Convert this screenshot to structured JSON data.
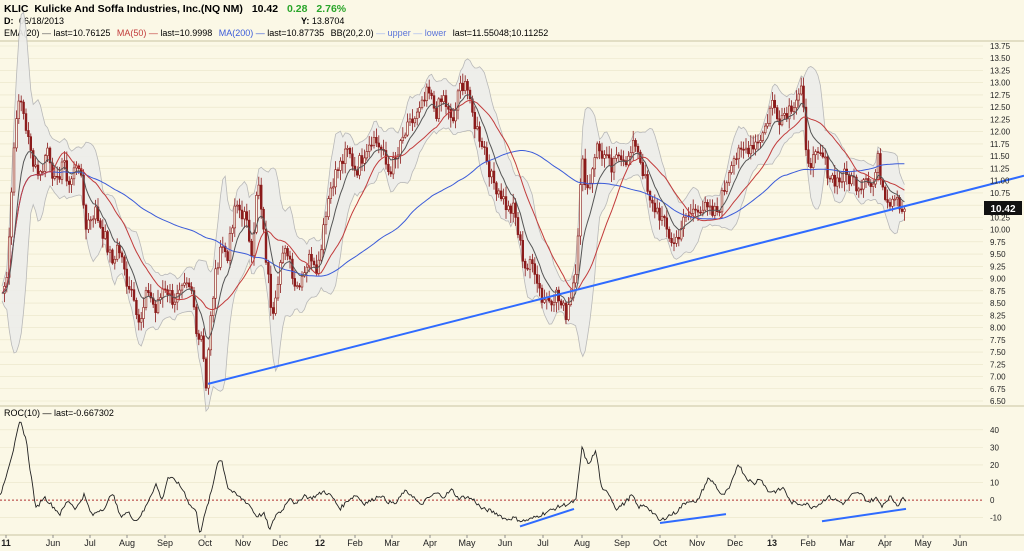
{
  "header": {
    "symbol": "KLIC",
    "company": "Kulicke And Soffa Industries, Inc.(NQ NM)",
    "price": "10.42",
    "change": "0.28",
    "change_pct": "2.76%",
    "date_label": "D:",
    "date_value": "06/18/2013",
    "y_label": "Y:",
    "y_value": "13.8704"
  },
  "legend": {
    "ema_name": "EMA(20)",
    "ema_last": "last=10.76125",
    "ma50_name": "MA(50)",
    "ma50_last": "last=10.9998",
    "ma200_name": "MA(200)",
    "ma200_last": "last=10.87735",
    "bb_name": "BB(20,2.0)",
    "bb_upper": "upper",
    "bb_lower": "lower",
    "bb_last": "last=11.55048;10.11252"
  },
  "roc_legend": {
    "name": "ROC(10)",
    "last": "last=-0.667302"
  },
  "price_badge": "10.42",
  "colors": {
    "background": "#fbf8e6",
    "candle": "#8b1a1a",
    "ema": "#555555",
    "ma50": "#c23b3b",
    "ma200": "#3b5bd9",
    "bb_fill": "#ececea",
    "bb_line": "#b8b8b8",
    "trendline": "#2f6bff",
    "roc": "#222222",
    "positive": "#2aa52a",
    "grid": "#e9e4c8"
  },
  "chart_data": [
    {
      "type": "candlestick",
      "title": "KLIC Kulicke And Soffa Industries, Inc.(NQ NM)",
      "x_ticks": [
        "11",
        "Jun",
        "Jul",
        "Aug",
        "Sep",
        "Oct",
        "Nov",
        "Dec",
        "12",
        "Feb",
        "Mar",
        "Apr",
        "May",
        "Jun",
        "Jul",
        "Aug",
        "Sep",
        "Oct",
        "Nov",
        "Dec",
        "13",
        "Feb",
        "Mar",
        "Apr",
        "May",
        "Jun"
      ],
      "y_ticks": [
        "6.50",
        "6.75",
        "7.00",
        "7.25",
        "7.50",
        "7.75",
        "8.00",
        "8.25",
        "8.50",
        "8.75",
        "9.00",
        "9.25",
        "9.50",
        "9.75",
        "10.00",
        "10.25",
        "10.50",
        "10.75",
        "11.00",
        "11.25",
        "11.50",
        "11.75",
        "12.00",
        "12.25",
        "12.50",
        "12.75",
        "13.00",
        "13.25",
        "13.50",
        "13.75"
      ],
      "ylim": [
        6.5,
        13.75
      ],
      "grid": true,
      "close_anchors": [
        [
          0,
          8.6
        ],
        [
          6,
          8.9
        ],
        [
          10,
          10.2
        ],
        [
          16,
          12.4
        ],
        [
          22,
          12.6
        ],
        [
          30,
          11.6
        ],
        [
          40,
          11.1
        ],
        [
          48,
          11.7
        ],
        [
          56,
          10.8
        ],
        [
          62,
          11.4
        ],
        [
          70,
          10.9
        ],
        [
          78,
          11.5
        ],
        [
          86,
          10.1
        ],
        [
          95,
          10.4
        ],
        [
          104,
          9.9
        ],
        [
          112,
          9.3
        ],
        [
          118,
          9.7
        ],
        [
          126,
          9.0
        ],
        [
          134,
          8.7
        ],
        [
          140,
          8.0
        ],
        [
          148,
          8.8
        ],
        [
          156,
          8.3
        ],
        [
          164,
          8.9
        ],
        [
          172,
          8.6
        ],
        [
          178,
          8.6
        ],
        [
          186,
          8.8
        ],
        [
          192,
          8.7
        ],
        [
          198,
          7.8
        ],
        [
          202,
          7.9
        ],
        [
          206,
          6.8
        ],
        [
          212,
          8.5
        ],
        [
          220,
          9.7
        ],
        [
          228,
          9.5
        ],
        [
          236,
          10.5
        ],
        [
          244,
          10.3
        ],
        [
          252,
          9.6
        ],
        [
          258,
          11.0
        ],
        [
          264,
          9.8
        ],
        [
          272,
          8.3
        ],
        [
          280,
          9.3
        ],
        [
          288,
          9.6
        ],
        [
          296,
          8.8
        ],
        [
          304,
          9.2
        ],
        [
          312,
          9.5
        ],
        [
          318,
          9.2
        ],
        [
          324,
          10.2
        ],
        [
          332,
          11.0
        ],
        [
          340,
          11.3
        ],
        [
          348,
          11.6
        ],
        [
          356,
          11.2
        ],
        [
          364,
          11.6
        ],
        [
          372,
          11.9
        ],
        [
          380,
          11.7
        ],
        [
          388,
          11.2
        ],
        [
          396,
          11.4
        ],
        [
          404,
          11.9
        ],
        [
          412,
          12.2
        ],
        [
          420,
          12.4
        ],
        [
          428,
          12.8
        ],
        [
          436,
          12.4
        ],
        [
          444,
          12.7
        ],
        [
          452,
          12.1
        ],
        [
          460,
          12.9
        ],
        [
          466,
          13.1
        ],
        [
          470,
          12.5
        ],
        [
          476,
          12.1
        ],
        [
          484,
          11.7
        ],
        [
          492,
          11.0
        ],
        [
          500,
          10.8
        ],
        [
          508,
          10.4
        ],
        [
          514,
          10.4
        ],
        [
          520,
          9.7
        ],
        [
          526,
          9.2
        ],
        [
          534,
          9.3
        ],
        [
          542,
          8.6
        ],
        [
          550,
          8.6
        ],
        [
          556,
          8.7
        ],
        [
          562,
          8.4
        ],
        [
          566,
          8.3
        ],
        [
          572,
          8.8
        ],
        [
          576,
          9.3
        ],
        [
          582,
          11.4
        ],
        [
          588,
          10.8
        ],
        [
          596,
          11.7
        ],
        [
          604,
          11.5
        ],
        [
          612,
          11.2
        ],
        [
          620,
          11.6
        ],
        [
          628,
          11.4
        ],
        [
          636,
          11.8
        ],
        [
          642,
          11.3
        ],
        [
          650,
          10.5
        ],
        [
          658,
          10.4
        ],
        [
          666,
          10.0
        ],
        [
          674,
          9.7
        ],
        [
          682,
          10.1
        ],
        [
          690,
          10.3
        ],
        [
          698,
          10.5
        ],
        [
          706,
          10.4
        ],
        [
          712,
          10.3
        ],
        [
          718,
          10.4
        ],
        [
          724,
          10.8
        ],
        [
          732,
          11.5
        ],
        [
          740,
          11.5
        ],
        [
          748,
          11.7
        ],
        [
          756,
          11.8
        ],
        [
          764,
          12.0
        ],
        [
          772,
          12.6
        ],
        [
          780,
          12.3
        ],
        [
          790,
          12.5
        ],
        [
          796,
          12.7
        ],
        [
          802,
          12.9
        ],
        [
          806,
          11.5
        ],
        [
          814,
          11.4
        ],
        [
          822,
          11.5
        ],
        [
          830,
          11.1
        ],
        [
          838,
          11.0
        ],
        [
          846,
          11.1
        ],
        [
          854,
          11.0
        ],
        [
          860,
          10.9
        ],
        [
          866,
          11.2
        ],
        [
          872,
          10.8
        ],
        [
          878,
          11.4
        ],
        [
          884,
          10.8
        ],
        [
          890,
          10.6
        ],
        [
          896,
          10.8
        ],
        [
          902,
          10.4
        ],
        [
          906,
          10.42
        ]
      ],
      "trendline": [
        [
          208,
          6.85
        ],
        [
          1024,
          11.1
        ]
      ]
    },
    {
      "type": "line",
      "title": "ROC(10)",
      "y_ticks": [
        "40",
        "30",
        "20",
        "10",
        "0",
        "-10"
      ],
      "ylim": [
        -17,
        45
      ],
      "values_anchors": [
        [
          0,
          2
        ],
        [
          8,
          18
        ],
        [
          14,
          30
        ],
        [
          20,
          45
        ],
        [
          26,
          35
        ],
        [
          30,
          18
        ],
        [
          36,
          -5
        ],
        [
          44,
          2
        ],
        [
          52,
          -3
        ],
        [
          60,
          -8
        ],
        [
          68,
          0
        ],
        [
          76,
          -5
        ],
        [
          84,
          3
        ],
        [
          92,
          -9
        ],
        [
          98,
          -6
        ],
        [
          106,
          -4
        ],
        [
          112,
          5
        ],
        [
          120,
          -9
        ],
        [
          128,
          -7
        ],
        [
          136,
          -12
        ],
        [
          144,
          -6
        ],
        [
          150,
          2
        ],
        [
          156,
          9
        ],
        [
          162,
          0
        ],
        [
          168,
          13
        ],
        [
          176,
          11
        ],
        [
          184,
          5
        ],
        [
          190,
          -3
        ],
        [
          196,
          -6
        ],
        [
          200,
          -19
        ],
        [
          206,
          -6
        ],
        [
          212,
          6
        ],
        [
          218,
          23
        ],
        [
          222,
          22
        ],
        [
          228,
          7
        ],
        [
          236,
          3
        ],
        [
          244,
          0
        ],
        [
          250,
          -3
        ],
        [
          256,
          -9
        ],
        [
          264,
          -8
        ],
        [
          270,
          -17
        ],
        [
          276,
          -8
        ],
        [
          282,
          -6
        ],
        [
          290,
          2
        ],
        [
          296,
          -3
        ],
        [
          304,
          3
        ],
        [
          310,
          1
        ],
        [
          318,
          3
        ],
        [
          324,
          5
        ],
        [
          332,
          2
        ],
        [
          340,
          -5
        ],
        [
          348,
          0
        ],
        [
          356,
          3
        ],
        [
          364,
          -2
        ],
        [
          372,
          0
        ],
        [
          380,
          3
        ],
        [
          388,
          -1
        ],
        [
          396,
          -2
        ],
        [
          404,
          5
        ],
        [
          412,
          3
        ],
        [
          420,
          -3
        ],
        [
          428,
          1
        ],
        [
          436,
          4
        ],
        [
          444,
          2
        ],
        [
          452,
          6
        ],
        [
          458,
          1
        ],
        [
          466,
          2
        ],
        [
          474,
          0
        ],
        [
          482,
          -5
        ],
        [
          490,
          -6
        ],
        [
          498,
          -8
        ],
        [
          506,
          -11
        ],
        [
          514,
          -10
        ],
        [
          522,
          -12
        ],
        [
          530,
          -11
        ],
        [
          538,
          -9
        ],
        [
          546,
          -7
        ],
        [
          554,
          -5
        ],
        [
          562,
          -3
        ],
        [
          570,
          -2
        ],
        [
          576,
          0
        ],
        [
          582,
          30
        ],
        [
          588,
          20
        ],
        [
          596,
          28
        ],
        [
          602,
          5
        ],
        [
          608,
          5
        ],
        [
          616,
          -5
        ],
        [
          624,
          -2
        ],
        [
          632,
          3
        ],
        [
          638,
          -4
        ],
        [
          646,
          -3
        ],
        [
          654,
          -8
        ],
        [
          660,
          -12
        ],
        [
          668,
          -9
        ],
        [
          676,
          -7
        ],
        [
          684,
          -2
        ],
        [
          690,
          0
        ],
        [
          696,
          -2
        ],
        [
          702,
          5
        ],
        [
          708,
          12
        ],
        [
          714,
          10
        ],
        [
          722,
          2
        ],
        [
          730,
          7
        ],
        [
          738,
          21
        ],
        [
          746,
          13
        ],
        [
          754,
          9
        ],
        [
          760,
          13
        ],
        [
          768,
          5
        ],
        [
          776,
          5
        ],
        [
          784,
          7
        ],
        [
          790,
          -1
        ],
        [
          798,
          -2
        ],
        [
          806,
          -2
        ],
        [
          812,
          -4
        ],
        [
          820,
          -2
        ],
        [
          828,
          2
        ],
        [
          836,
          0
        ],
        [
          844,
          -2
        ],
        [
          852,
          3
        ],
        [
          860,
          4
        ],
        [
          868,
          -1
        ],
        [
          876,
          1
        ],
        [
          882,
          -3
        ],
        [
          890,
          2
        ],
        [
          898,
          -3
        ],
        [
          902,
          1
        ],
        [
          906,
          -0.67
        ]
      ],
      "divergence_lines": [
        [
          [
            520,
            -15
          ],
          [
            574,
            -5
          ]
        ],
        [
          [
            660,
            -13
          ],
          [
            726,
            -8
          ]
        ],
        [
          [
            822,
            -12
          ],
          [
            906,
            -5
          ]
        ]
      ]
    }
  ]
}
